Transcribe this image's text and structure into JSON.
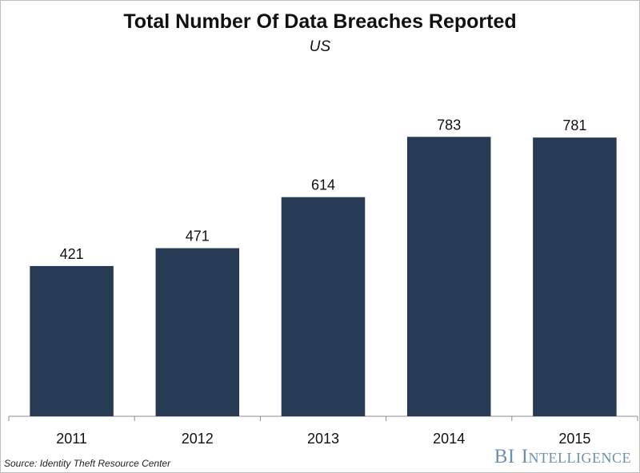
{
  "chart_data": {
    "type": "bar",
    "title": "Total Number Of Data Breaches Reported",
    "subtitle": "US",
    "categories": [
      "2011",
      "2012",
      "2013",
      "2014",
      "2015"
    ],
    "values": [
      421,
      471,
      614,
      783,
      781
    ],
    "data_labels": [
      "421",
      "471",
      "614",
      "783",
      "781"
    ],
    "xlabel": "",
    "ylabel": "",
    "ylim": [
      0,
      900
    ],
    "grid": false,
    "bar_color": "#273c54"
  },
  "footer": {
    "source": "Source: Identity Theft Resource Center",
    "brand_bi": "BI",
    "brand_rest": "Intelligence"
  }
}
